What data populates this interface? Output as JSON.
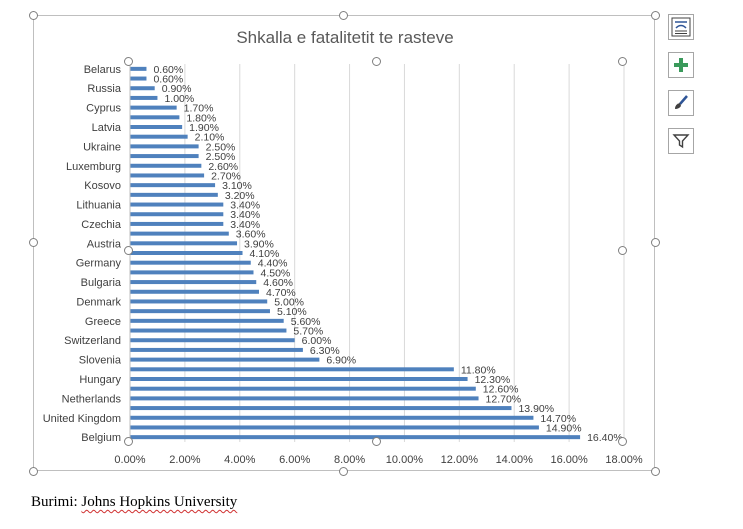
{
  "chart_data": {
    "type": "bar",
    "orientation": "horizontal",
    "title": "Shkalla e fatalitetit te rasteve",
    "xlim": [
      0,
      18
    ],
    "x_ticks": [
      "0.00%",
      "2.00%",
      "4.00%",
      "6.00%",
      "8.00%",
      "10.00%",
      "12.00%",
      "14.00%",
      "16.00%",
      "18.00%"
    ],
    "grid": true,
    "bar_color": "#4f81bd",
    "category_labels_shown": [
      "Belarus",
      "Russia",
      "Cyprus",
      "Latvia",
      "Ukraine",
      "Luxemburg",
      "Kosovo",
      "Lithuania",
      "Czechia",
      "Austria",
      "Germany",
      "Bulgaria",
      "Denmark",
      "Greece",
      "Switzerland",
      "Slovenia",
      "Hungary",
      "Netherlands",
      "United Kingdom",
      "Belgium"
    ],
    "values": [
      0.6,
      0.6,
      0.9,
      1.0,
      1.7,
      1.8,
      1.9,
      2.1,
      2.5,
      2.5,
      2.6,
      2.7,
      3.1,
      3.2,
      3.4,
      3.4,
      3.4,
      3.6,
      3.9,
      4.1,
      4.4,
      4.5,
      4.6,
      4.7,
      5.0,
      5.1,
      5.6,
      5.7,
      6.0,
      6.3,
      6.9,
      11.8,
      12.3,
      12.6,
      12.7,
      13.9,
      14.7,
      14.9,
      16.4
    ],
    "value_labels": [
      "0.60%",
      "0.60%",
      "0.90%",
      "1.00%",
      "1.70%",
      "1.80%",
      "1.90%",
      "2.10%",
      "2.50%",
      "2.50%",
      "2.60%",
      "2.70%",
      "3.10%",
      "3.20%",
      "3.40%",
      "3.40%",
      "3.40%",
      "3.60%",
      "3.90%",
      "4.10%",
      "4.40%",
      "4.50%",
      "4.60%",
      "4.70%",
      "5.00%",
      "5.10%",
      "5.60%",
      "5.70%",
      "6.00%",
      "6.30%",
      "6.90%",
      "11.80%",
      "12.30%",
      "12.60%",
      "12.70%",
      "13.90%",
      "14.70%",
      "14.90%",
      "16.40%"
    ]
  },
  "source": {
    "prefix": "Burimi:",
    "name": "Johns Hopkins University"
  },
  "side_buttons": [
    {
      "icon": "chart-layout-icon"
    },
    {
      "icon": "plus-icon"
    },
    {
      "icon": "brush-icon"
    },
    {
      "icon": "filter-icon"
    }
  ]
}
